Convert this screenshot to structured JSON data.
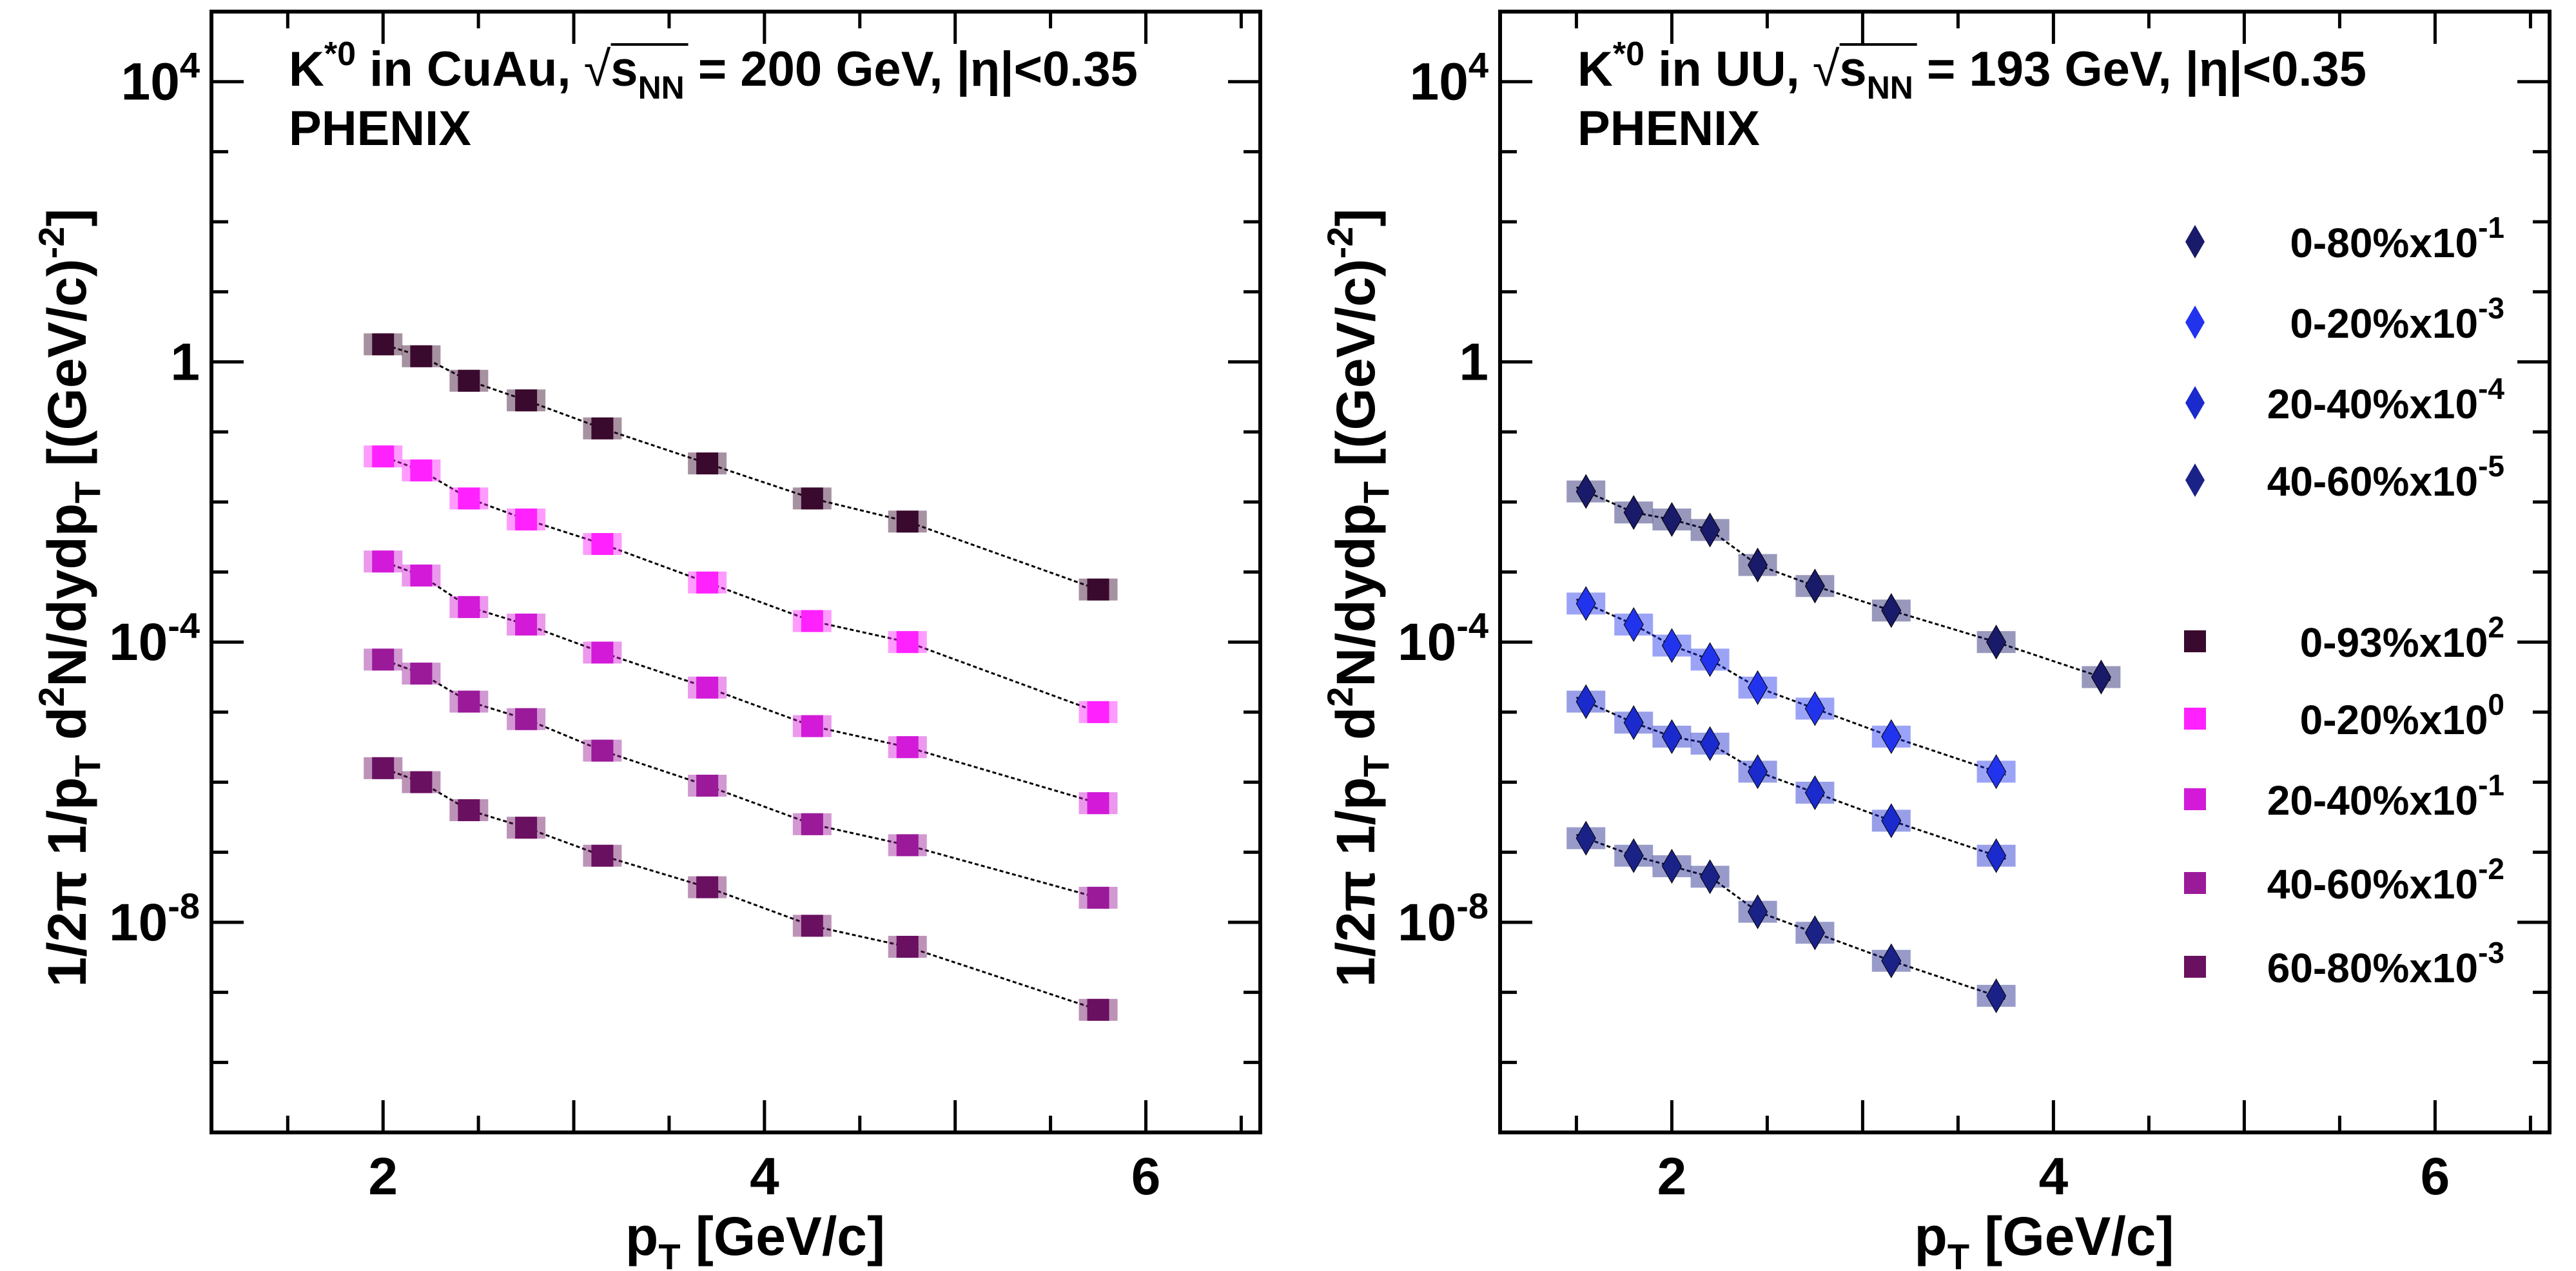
{
  "chart_data": [
    {
      "type": "scatter",
      "title": "K*0 in CuAu,",
      "title_energy": "= 200 GeV, |η|<0.35",
      "experiment": "PHENIX",
      "xlabel": "p",
      "xlabel_sub": "T",
      "xlabel_unit": " [GeV/c]",
      "ylabel": "1/2π 1/p_T d²N/dydp_T [(GeV/c)⁻²]",
      "xlim": [
        1.1,
        6.6
      ],
      "ylim_log10": [
        -11,
        5
      ],
      "y_scale": "log",
      "x_ticks": [
        2,
        4,
        6
      ],
      "y_ticks": [
        "1",
        "10^4",
        "10^-4",
        "10^-8"
      ],
      "marker": "square",
      "series": [
        {
          "name": "0-93%x10",
          "exp": "2",
          "color": "#3a0a2e",
          "x": [
            2.0,
            2.2,
            2.45,
            2.75,
            3.15,
            3.7,
            4.25,
            4.75,
            5.75
          ],
          "log10y": [
            0.25,
            0.08,
            -0.27,
            -0.55,
            -0.95,
            -1.45,
            -1.95,
            -2.28,
            -3.25
          ]
        },
        {
          "name": "0-20%x10",
          "exp": "0",
          "color": "#ff22ff",
          "x": [
            2.0,
            2.2,
            2.45,
            2.75,
            3.15,
            3.7,
            4.25,
            4.75,
            5.75
          ],
          "log10y": [
            -1.35,
            -1.55,
            -1.95,
            -2.25,
            -2.6,
            -3.15,
            -3.7,
            -4.0,
            -5.0
          ]
        },
        {
          "name": "20-40%x10",
          "exp": "-1",
          "color": "#d21ad8",
          "x": [
            2.0,
            2.2,
            2.45,
            2.75,
            3.15,
            3.7,
            4.25,
            4.75,
            5.75
          ],
          "log10y": [
            -2.85,
            -3.05,
            -3.5,
            -3.75,
            -4.15,
            -4.65,
            -5.2,
            -5.5,
            -6.3
          ]
        },
        {
          "name": "40-60%x10",
          "exp": "-2",
          "color": "#9a1a9a",
          "x": [
            2.0,
            2.2,
            2.45,
            2.75,
            3.15,
            3.7,
            4.25,
            4.75,
            5.75
          ],
          "log10y": [
            -4.25,
            -4.45,
            -4.85,
            -5.1,
            -5.55,
            -6.05,
            -6.6,
            -6.9,
            -7.65
          ]
        },
        {
          "name": "60-80%x10",
          "exp": "-3",
          "color": "#6a1060",
          "x": [
            2.0,
            2.2,
            2.45,
            2.75,
            3.15,
            3.7,
            4.25,
            4.75,
            5.75
          ],
          "log10y": [
            -5.8,
            -6.0,
            -6.4,
            -6.65,
            -7.05,
            -7.5,
            -8.05,
            -8.35,
            -9.25
          ]
        }
      ]
    },
    {
      "type": "scatter",
      "title": "K*0 in UU,",
      "title_energy": "= 193 GeV, |η|<0.35",
      "experiment": "PHENIX",
      "xlabel": "p",
      "xlabel_sub": "T",
      "xlabel_unit": " [GeV/c]",
      "ylabel": "1/2π 1/p_T d²N/dydp_T [(GeV/c)⁻²]",
      "xlim": [
        1.1,
        6.6
      ],
      "ylim_log10": [
        -11,
        5
      ],
      "y_scale": "log",
      "x_ticks": [
        2,
        4,
        6
      ],
      "y_ticks": [
        "1",
        "10^4",
        "10^-4",
        "10^-8"
      ],
      "marker": "diamond",
      "series": [
        {
          "name": "0-80%x10",
          "exp": "-1",
          "color": "#1a1a6a",
          "x": [
            1.55,
            1.8,
            2.0,
            2.2,
            2.45,
            2.75,
            3.15,
            3.7,
            4.25
          ],
          "log10y": [
            -1.85,
            -2.15,
            -2.25,
            -2.4,
            -2.9,
            -3.2,
            -3.55,
            -4.0,
            -4.5
          ]
        },
        {
          "name": "0-20%x10",
          "exp": "-3",
          "color": "#2233ee",
          "x": [
            1.55,
            1.8,
            2.0,
            2.2,
            2.45,
            2.75,
            3.15,
            3.7
          ],
          "log10y": [
            -3.45,
            -3.75,
            -4.05,
            -4.25,
            -4.65,
            -4.95,
            -5.35,
            -5.85
          ]
        },
        {
          "name": "20-40%x10",
          "exp": "-4",
          "color": "#1a2acc",
          "x": [
            1.55,
            1.8,
            2.0,
            2.2,
            2.45,
            2.75,
            3.15,
            3.7
          ],
          "log10y": [
            -4.85,
            -5.15,
            -5.35,
            -5.45,
            -5.85,
            -6.15,
            -6.55,
            -7.05
          ]
        },
        {
          "name": "40-60%x10",
          "exp": "-5",
          "color": "#1a2288",
          "x": [
            1.55,
            1.8,
            2.0,
            2.2,
            2.45,
            2.75,
            3.15,
            3.7
          ],
          "log10y": [
            -6.8,
            -7.05,
            -7.2,
            -7.35,
            -7.85,
            -8.15,
            -8.55,
            -9.05
          ]
        }
      ],
      "legend": [
        {
          "label": "0-80%x10",
          "exp": "-1",
          "marker": "diamond",
          "color": "#1a1a6a"
        },
        {
          "label": "0-20%x10",
          "exp": "-3",
          "marker": "diamond",
          "color": "#2233ee"
        },
        {
          "label": "20-40%x10",
          "exp": "-4",
          "marker": "diamond",
          "color": "#1a2acc"
        },
        {
          "label": "40-60%x10",
          "exp": "-5",
          "marker": "diamond",
          "color": "#1a2288"
        },
        {
          "label": "0-93%x10",
          "exp": "2",
          "marker": "square",
          "color": "#3a0a2e"
        },
        {
          "label": "0-20%x10",
          "exp": "0",
          "marker": "square",
          "color": "#ff22ff"
        },
        {
          "label": "20-40%x10",
          "exp": "-1",
          "marker": "square",
          "color": "#d21ad8"
        },
        {
          "label": "40-60%x10",
          "exp": "-2",
          "marker": "square",
          "color": "#9a1a9a"
        },
        {
          "label": "60-80%x10",
          "exp": "-3",
          "marker": "square",
          "color": "#6a1060"
        }
      ]
    }
  ],
  "text": {
    "sqrt_s": "s",
    "sqrt_s_sub": "NN",
    "x_tick_labels": [
      "2",
      "4",
      "6"
    ],
    "y_tick_one": "1",
    "y_tick_base": "10",
    "y_tick_exps": [
      "4",
      "-4",
      "-8"
    ],
    "ylabel_parts": [
      "1/2π 1/p",
      "T",
      " d",
      "2",
      "N/dydp",
      "T",
      " [(GeV/c)",
      "-2",
      "]"
    ]
  }
}
